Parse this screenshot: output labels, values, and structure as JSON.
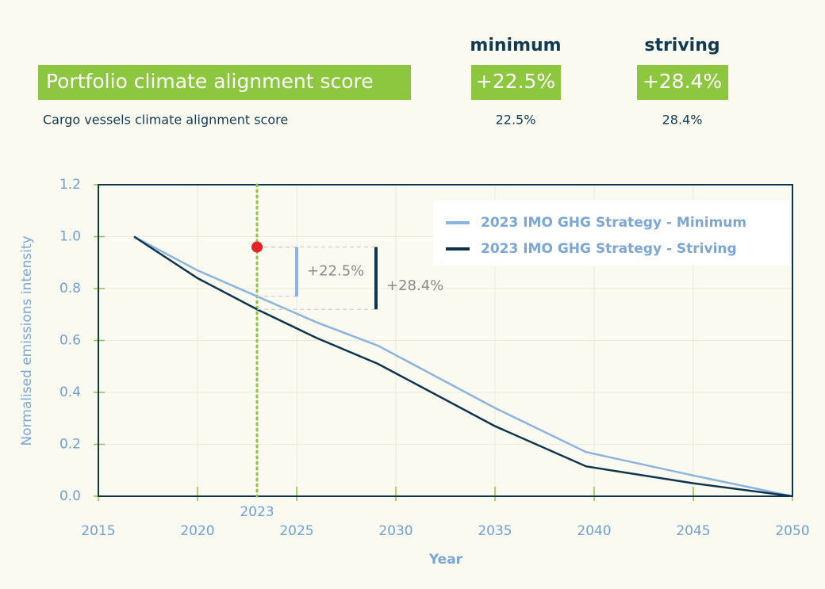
{
  "header": {
    "columns": [
      "minimum",
      "striving"
    ],
    "rows": [
      {
        "label": "Portfolio climate alignment score",
        "values": [
          "+22.5%",
          "+28.4%"
        ]
      },
      {
        "label": "Cargo vessels climate alignment score",
        "values": [
          "22.5%",
          "28.4%"
        ]
      }
    ]
  },
  "chart_data": {
    "type": "line",
    "x_label": "Year",
    "y_label": "Normalised emissions intensity",
    "xlim": [
      2015,
      2050
    ],
    "xticks": [
      2015,
      2020,
      2025,
      2030,
      2035,
      2040,
      2045,
      2050
    ],
    "ylim": [
      0,
      1.2
    ],
    "yticks": [
      {
        "value": 0,
        "label": "0.0"
      },
      {
        "value": 0.2,
        "label": "0.2"
      },
      {
        "value": 0.4,
        "label": "0.4"
      },
      {
        "value": 0.6,
        "label": "0.6"
      },
      {
        "value": 0.8,
        "label": "0.8"
      },
      {
        "value": 1,
        "label": "1.0"
      },
      {
        "value": 1.2,
        "label": "1.2"
      }
    ],
    "grid": true,
    "legend": "upper right",
    "x": [
      2016.8,
      2020,
      2023,
      2026,
      2029.1,
      2035,
      2039.6,
      2045,
      2050
    ],
    "series": [
      {
        "name": "2023 IMO GHG Strategy - Minimum",
        "color": "#8bb4e0",
        "values": [
          1.0,
          0.87,
          0.77,
          0.67,
          0.58,
          0.34,
          0.17,
          0.08,
          0.0
        ]
      },
      {
        "name": "2023 IMO GHG Strategy - Striving",
        "color": "#0d3550",
        "values": [
          1.0,
          0.84,
          0.72,
          0.61,
          0.51,
          0.27,
          0.115,
          0.05,
          0.0
        ]
      }
    ],
    "marker_line": {
      "x": 2023,
      "label": "2023",
      "color": "#8dc63f"
    },
    "point": {
      "x": 2023,
      "y": 0.96,
      "color": "#e8202a"
    },
    "brackets": [
      {
        "label": "+22.5%",
        "x": 2025,
        "from": 0.96,
        "to": 0.77,
        "color": "#8bb4e0"
      },
      {
        "label": "+28.4%",
        "x": 2029,
        "from": 0.96,
        "to": 0.72,
        "color": "#0d3550"
      }
    ]
  }
}
